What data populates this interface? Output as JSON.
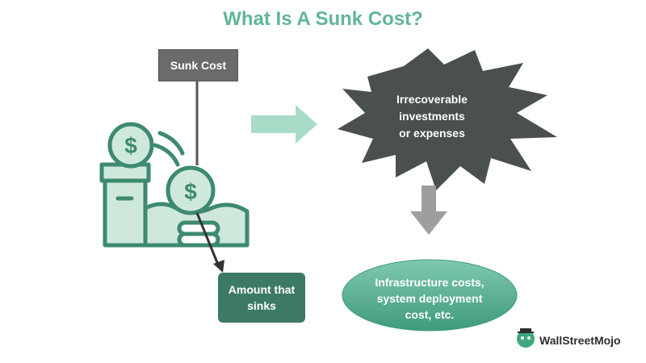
{
  "title": "What Is A Sunk Cost?",
  "labels": {
    "sunk_cost": "Sunk Cost",
    "amount_line1": "Amount that",
    "amount_line2": "sinks",
    "irrecoverable_line1": "Irrecoverable",
    "irrecoverable_line2": "investments",
    "irrecoverable_line3": "or expenses",
    "examples_line1": "Infrastructure costs,",
    "examples_line2": "system deployment",
    "examples_line3": "cost, etc."
  },
  "icons": {
    "coin_symbol": "$"
  },
  "brand": {
    "name": "WallStreetMojo"
  },
  "colors": {
    "title": "#5fb59a",
    "icon_stroke": "#3d8a6e",
    "icon_fill": "#cfe8dc",
    "starburst": "#4a4f50",
    "arrow_right": "#a8dcc6",
    "arrow_down": "#9e9e9e",
    "ellipse": "#4aa88a"
  }
}
